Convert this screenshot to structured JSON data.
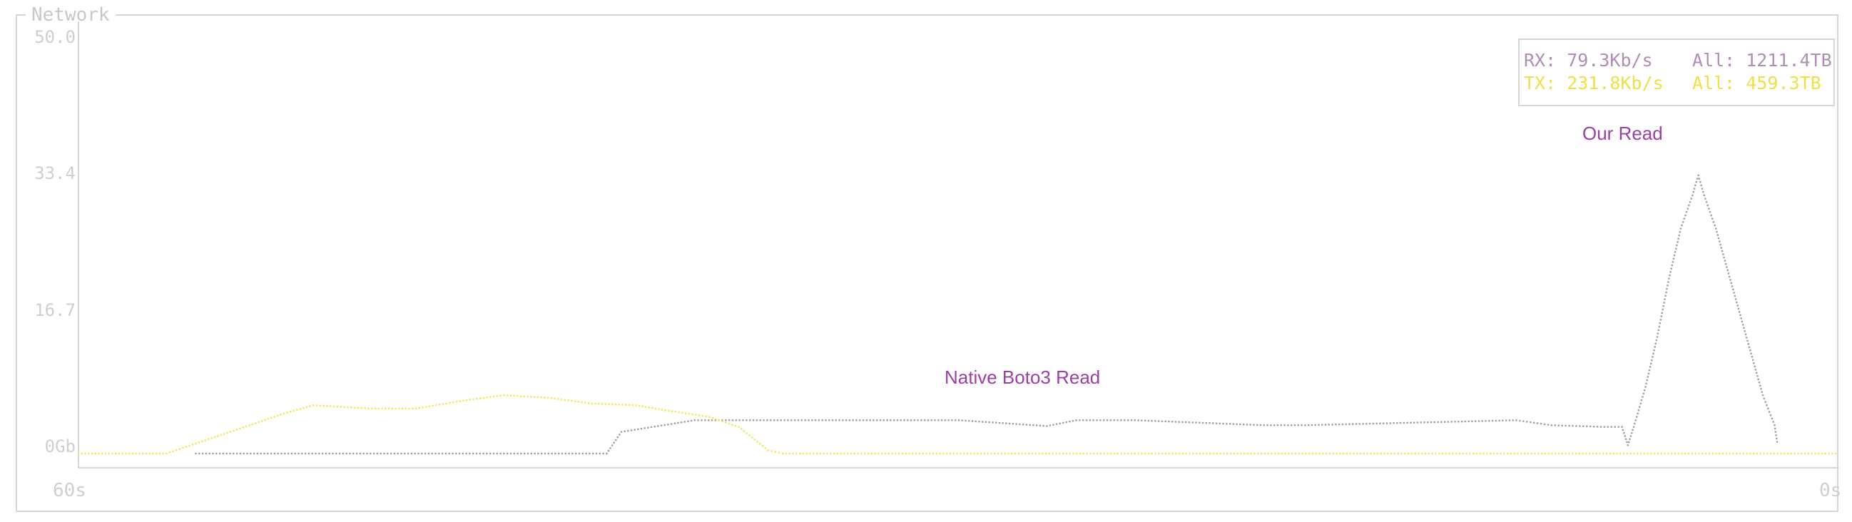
{
  "panel": {
    "title": "Network"
  },
  "legend": {
    "rx_rate": "RX: 79.3Kb/s",
    "rx_total": "All: 1211.4TB",
    "tx_rate": "TX: 231.8Kb/s",
    "tx_total": "All: 459.3TB"
  },
  "annotations": {
    "native": "Native Boto3 Read",
    "ours": "Our Read"
  },
  "colors": {
    "rx": "#a99aa8",
    "tx": "#f3e75a",
    "annotation": "#9b3fa6",
    "axis": "#d6d6d6"
  },
  "chart_data": {
    "type": "line",
    "title": "Network",
    "xlabel": "",
    "ylabel": "",
    "x_ticks": [
      "60s",
      "0s"
    ],
    "y_ticks": [
      "0Gb",
      "16.7",
      "33.4",
      "50.0"
    ],
    "ylim": [
      0,
      50
    ],
    "xlim": [
      60,
      0
    ],
    "grid": false,
    "legend_position": "top-right",
    "series": [
      {
        "name": "RX: 79.3Kb/s",
        "points": [
          [
            56,
            0
          ],
          [
            42,
            0
          ],
          [
            41.5,
            2.6
          ],
          [
            39,
            4
          ],
          [
            35,
            4
          ],
          [
            30,
            4
          ],
          [
            27,
            3.3
          ],
          [
            26,
            4
          ],
          [
            24,
            4
          ],
          [
            19.6,
            3.4
          ],
          [
            18.2,
            3.4
          ],
          [
            11,
            4
          ],
          [
            9.8,
            3.4
          ],
          [
            8,
            3.2
          ],
          [
            7.4,
            3.2
          ],
          [
            7.2,
            1.0
          ],
          [
            7.0,
            3.2
          ],
          [
            6.6,
            8
          ],
          [
            6.2,
            14
          ],
          [
            5.8,
            21
          ],
          [
            5.4,
            27
          ],
          [
            5.0,
            31
          ],
          [
            4.8,
            33.4
          ],
          [
            4.6,
            31
          ],
          [
            4.2,
            27
          ],
          [
            3.8,
            22
          ],
          [
            3.4,
            17
          ],
          [
            3.0,
            12
          ],
          [
            2.6,
            7
          ],
          [
            2.2,
            3.4
          ],
          [
            2.1,
            1.0
          ]
        ]
      },
      {
        "name": "TX: 231.8Kb/s",
        "points": [
          [
            60,
            0
          ],
          [
            57,
            0
          ],
          [
            56,
            1.2
          ],
          [
            54.5,
            3
          ],
          [
            53,
            4.8
          ],
          [
            52,
            5.8
          ],
          [
            50,
            5.4
          ],
          [
            48.5,
            5.4
          ],
          [
            47,
            6.3
          ],
          [
            45.5,
            7
          ],
          [
            44,
            6.7
          ],
          [
            42.5,
            6
          ],
          [
            41,
            5.8
          ],
          [
            40,
            5.2
          ],
          [
            38.5,
            4.4
          ],
          [
            37.5,
            3.2
          ],
          [
            36.5,
            0.4
          ],
          [
            36,
            0
          ],
          [
            0,
            0
          ]
        ]
      }
    ]
  }
}
